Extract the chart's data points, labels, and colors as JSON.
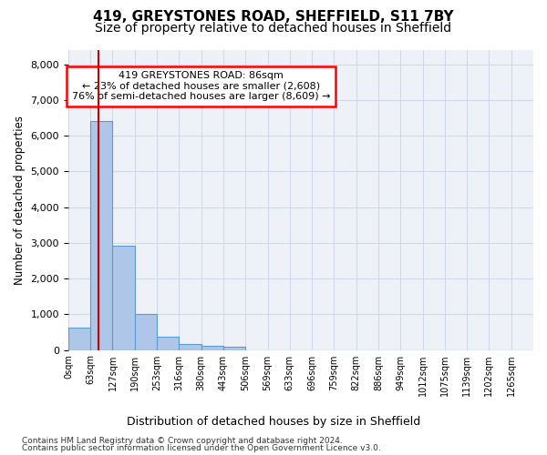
{
  "title_line1": "419, GREYSTONES ROAD, SHEFFIELD, S11 7BY",
  "title_line2": "Size of property relative to detached houses in Sheffield",
  "xlabel": "Distribution of detached houses by size in Sheffield",
  "ylabel": "Number of detached properties",
  "bar_values": [
    620,
    6400,
    2920,
    1010,
    380,
    175,
    110,
    90,
    0,
    0,
    0,
    0,
    0,
    0,
    0,
    0,
    0,
    0,
    0,
    0,
    0
  ],
  "bar_labels": [
    "0sqm",
    "63sqm",
    "127sqm",
    "190sqm",
    "253sqm",
    "316sqm",
    "380sqm",
    "443sqm",
    "506sqm",
    "569sqm",
    "633sqm",
    "696sqm",
    "759sqm",
    "822sqm",
    "886sqm",
    "949sqm",
    "1012sqm",
    "1075sqm",
    "1139sqm",
    "1202sqm",
    "1265sqm"
  ],
  "bar_color": "#aec6e8",
  "bar_edgecolor": "#5b9bd5",
  "bar_linewidth": 0.8,
  "property_size": 86,
  "annotation_text": "419 GREYSTONES ROAD: 86sqm\n← 23% of detached houses are smaller (2,608)\n76% of semi-detached houses are larger (8,609) →",
  "annotation_box_color": "white",
  "annotation_box_edgecolor": "red",
  "red_line_color": "#cc0000",
  "ylim": [
    0,
    8400
  ],
  "yticks": [
    0,
    1000,
    2000,
    3000,
    4000,
    5000,
    6000,
    7000,
    8000
  ],
  "grid_color": "#d0d8e8",
  "bg_color": "#eef2f8",
  "footnote1": "Contains HM Land Registry data © Crown copyright and database right 2024.",
  "footnote2": "Contains public sector information licensed under the Open Government Licence v3.0.",
  "title_fontsize": 11,
  "subtitle_fontsize": 10
}
